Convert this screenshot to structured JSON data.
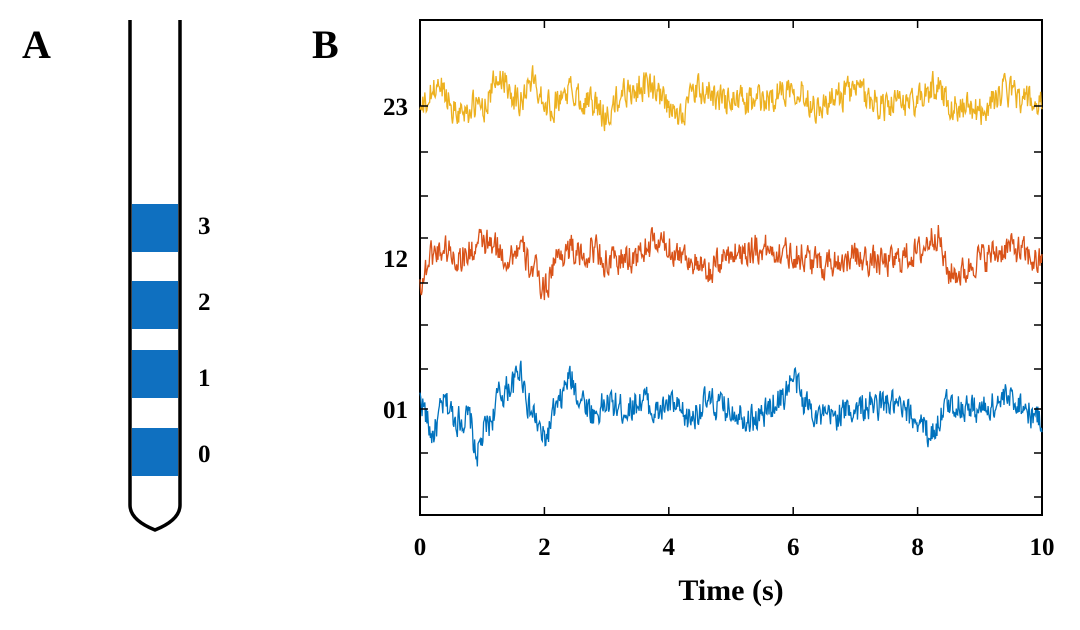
{
  "panel_a": {
    "label": "A",
    "contacts": [
      {
        "label": "0",
        "color": "#0f70c0"
      },
      {
        "label": "1",
        "color": "#0f70c0"
      },
      {
        "label": "2",
        "color": "#0f70c0"
      },
      {
        "label": "3",
        "color": "#0f70c0"
      }
    ]
  },
  "panel_b": {
    "label": "B"
  },
  "chart_data": {
    "type": "line",
    "title": "",
    "xlabel": "Time (s)",
    "ylabel": "",
    "xlim": [
      0,
      10
    ],
    "x_ticks": [
      "0",
      "2",
      "4",
      "6",
      "8",
      "10"
    ],
    "y_tick_labels": [
      "01",
      "12",
      "23"
    ],
    "grid": false,
    "legend": "none",
    "series": [
      {
        "name": "01",
        "color": "#0072bd",
        "envelope": [
          [
            0.0,
            0.2
          ],
          [
            0.2,
            -0.5
          ],
          [
            0.4,
            0.1
          ],
          [
            0.6,
            -0.2
          ],
          [
            0.8,
            -0.2
          ],
          [
            0.9,
            -0.9
          ],
          [
            1.1,
            -0.3
          ],
          [
            1.3,
            0.3
          ],
          [
            1.5,
            0.5
          ],
          [
            1.6,
            0.8
          ],
          [
            1.8,
            -0.1
          ],
          [
            2.0,
            -0.6
          ],
          [
            2.2,
            0.0
          ],
          [
            2.4,
            0.6
          ],
          [
            2.6,
            0.2
          ],
          [
            2.8,
            -0.1
          ],
          [
            3.0,
            0.1
          ],
          [
            3.3,
            0.0
          ],
          [
            3.6,
            0.2
          ],
          [
            3.8,
            -0.1
          ],
          [
            4.0,
            0.1
          ],
          [
            4.3,
            -0.2
          ],
          [
            4.6,
            0.1
          ],
          [
            5.0,
            0.0
          ],
          [
            5.4,
            -0.2
          ],
          [
            5.8,
            0.2
          ],
          [
            6.0,
            0.6
          ],
          [
            6.2,
            0.1
          ],
          [
            6.5,
            -0.2
          ],
          [
            7.0,
            0.0
          ],
          [
            7.5,
            0.1
          ],
          [
            8.0,
            -0.2
          ],
          [
            8.2,
            -0.5
          ],
          [
            8.5,
            0.1
          ],
          [
            9.0,
            0.0
          ],
          [
            9.5,
            0.2
          ],
          [
            10.0,
            -0.2
          ]
        ]
      },
      {
        "name": "12",
        "color": "#d95319",
        "envelope": [
          [
            0.0,
            -0.5
          ],
          [
            0.2,
            0.1
          ],
          [
            0.4,
            0.2
          ],
          [
            0.6,
            0.0
          ],
          [
            0.8,
            0.1
          ],
          [
            1.0,
            0.3
          ],
          [
            1.2,
            0.2
          ],
          [
            1.4,
            0.0
          ],
          [
            1.6,
            0.2
          ],
          [
            1.8,
            -0.2
          ],
          [
            2.0,
            -0.6
          ],
          [
            2.2,
            0.0
          ],
          [
            2.4,
            0.2
          ],
          [
            2.6,
            0.0
          ],
          [
            2.8,
            0.2
          ],
          [
            3.0,
            -0.1
          ],
          [
            3.4,
            0.0
          ],
          [
            3.8,
            0.3
          ],
          [
            4.2,
            0.1
          ],
          [
            4.6,
            -0.3
          ],
          [
            5.0,
            0.1
          ],
          [
            5.4,
            0.2
          ],
          [
            6.0,
            0.1
          ],
          [
            6.4,
            -0.1
          ],
          [
            7.0,
            0.0
          ],
          [
            7.5,
            -0.1
          ],
          [
            8.0,
            0.1
          ],
          [
            8.3,
            0.5
          ],
          [
            8.5,
            -0.3
          ],
          [
            8.7,
            -0.3
          ],
          [
            9.0,
            0.0
          ],
          [
            9.5,
            0.2
          ],
          [
            10.0,
            -0.1
          ]
        ]
      },
      {
        "name": "23",
        "color": "#edb120",
        "envelope": [
          [
            0.0,
            -0.1
          ],
          [
            0.3,
            0.4
          ],
          [
            0.6,
            -0.1
          ],
          [
            1.0,
            0.0
          ],
          [
            1.3,
            0.6
          ],
          [
            1.6,
            0.1
          ],
          [
            1.8,
            0.5
          ],
          [
            2.1,
            0.0
          ],
          [
            2.4,
            0.3
          ],
          [
            2.7,
            0.1
          ],
          [
            3.0,
            -0.2
          ],
          [
            3.3,
            0.3
          ],
          [
            3.7,
            0.4
          ],
          [
            4.1,
            -0.2
          ],
          [
            4.5,
            0.3
          ],
          [
            5.0,
            0.1
          ],
          [
            5.5,
            0.1
          ],
          [
            6.0,
            0.4
          ],
          [
            6.4,
            0.0
          ],
          [
            7.0,
            0.3
          ],
          [
            7.5,
            0.0
          ],
          [
            8.0,
            0.1
          ],
          [
            8.3,
            0.4
          ],
          [
            8.6,
            0.0
          ],
          [
            9.0,
            -0.1
          ],
          [
            9.4,
            0.3
          ],
          [
            10.0,
            0.0
          ]
        ]
      }
    ]
  }
}
